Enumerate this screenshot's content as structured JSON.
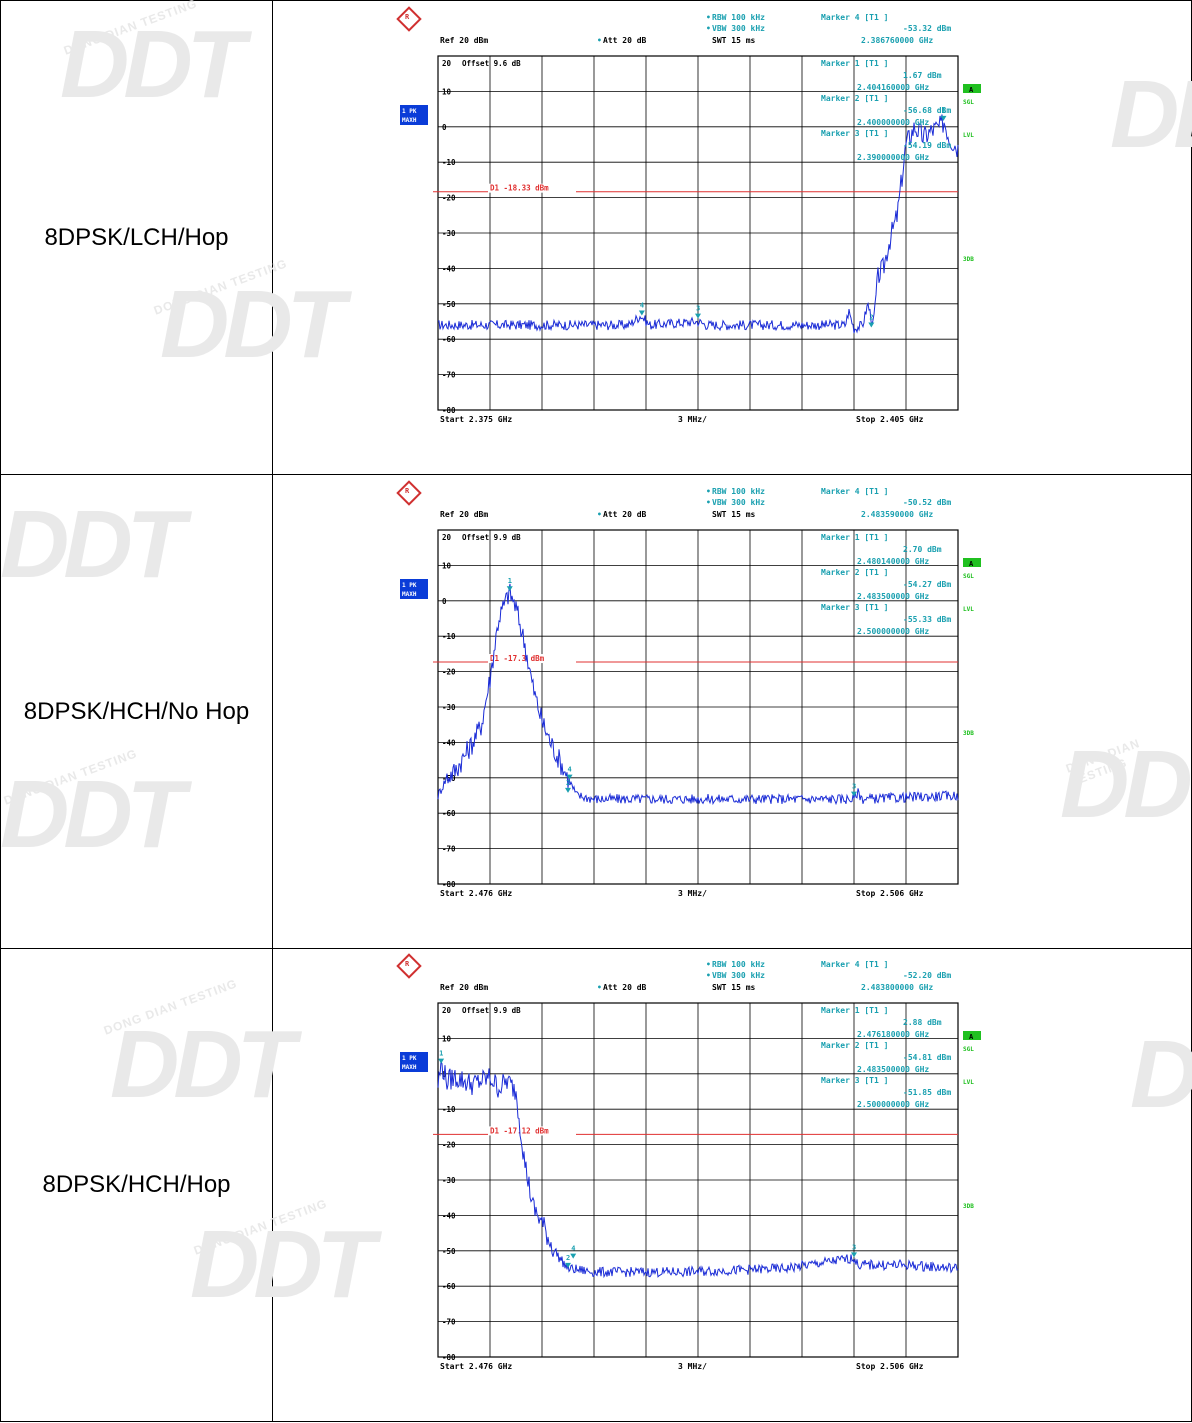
{
  "watermark": {
    "logo": "DDT",
    "text": "DONG DIAN TESTING"
  },
  "colors": {
    "trace": "#1a2bd6",
    "marker": "#1aa0b0",
    "display_line": "#e03030",
    "grid": "#000000",
    "side_badge": "#0a3cd8",
    "green_badge": "#20c020"
  },
  "rows": [
    {
      "label": "8DPSK/LCH/Hop",
      "header": {
        "rbw": "RBW 100 kHz",
        "vbw": "VBW 300 kHz",
        "swt": "SWT 15 ms",
        "ref": "Ref  20 dBm",
        "att": "Att  20 dB",
        "marker_title": "Marker 4 [T1 ]",
        "marker_level": "-53.32 dBm",
        "marker_freq": "2.386760000 GHz"
      },
      "offset": "Offset  9.6 dB",
      "left_badge_1": "1 PK",
      "left_badge_2": "MAXH",
      "right_labels": {
        "a": "A",
        "sgl": "SGL",
        "lvl": "LVL",
        "db3": "3DB"
      },
      "marker_box": [
        {
          "title": "Marker 1 [T1 ]",
          "level": "1.67 dBm",
          "freq": "2.404160000 GHz"
        },
        {
          "title": "Marker 2 [T1 ]",
          "level": "-56.68 dBm",
          "freq": "2.400000000 GHz"
        },
        {
          "title": "Marker 3 [T1 ]",
          "level": "-54.19 dBm",
          "freq": "2.390000000 GHz"
        }
      ],
      "display_line_label": "D1 -18.33 dBm",
      "footer": {
        "start": "Start  2.375 GHz",
        "span": "3 MHz/",
        "stop": "Stop  2.405 GHz"
      },
      "chart_data": {
        "type": "line",
        "x_range_ghz": [
          2.375,
          2.405
        ],
        "ylim": [
          -80,
          20
        ],
        "y_ticks": [
          20,
          10,
          0,
          -10,
          -20,
          -30,
          -40,
          -50,
          -60,
          -70,
          -80
        ],
        "y_tick_labels": [
          "20",
          "10",
          "0",
          "-10",
          "-20",
          "-30",
          "-40",
          "-50",
          "-60",
          "-70",
          "-80"
        ],
        "display_line_dbm": -18.33,
        "noise_floor_dbm": -56,
        "trace": [
          [
            2.375,
            -56
          ],
          [
            2.386,
            -56
          ],
          [
            2.3867,
            -53.3
          ],
          [
            2.3872,
            -56
          ],
          [
            2.39,
            -55
          ],
          [
            2.3905,
            -56
          ],
          [
            2.3985,
            -56
          ],
          [
            2.3987,
            -52
          ],
          [
            2.399,
            -57
          ],
          [
            2.3995,
            -56
          ],
          [
            2.3998,
            -50
          ],
          [
            2.4001,
            -56
          ],
          [
            2.4004,
            -42
          ],
          [
            2.4007,
            -40
          ],
          [
            2.401,
            -33
          ],
          [
            2.4015,
            -25
          ],
          [
            2.402,
            -5
          ],
          [
            2.4025,
            0
          ],
          [
            2.403,
            -3
          ],
          [
            2.4035,
            -1
          ],
          [
            2.404,
            0
          ],
          [
            2.4042,
            1.7
          ],
          [
            2.4045,
            -3
          ],
          [
            2.405,
            -6
          ]
        ],
        "markers": [
          {
            "id": "1",
            "freq_ghz": 2.40416,
            "level_dbm": 1.67
          },
          {
            "id": "2",
            "freq_ghz": 2.4,
            "level_dbm": -56.68
          },
          {
            "id": "3",
            "freq_ghz": 2.39,
            "level_dbm": -54.19
          },
          {
            "id": "4",
            "freq_ghz": 2.38676,
            "level_dbm": -53.32
          }
        ]
      }
    },
    {
      "label": "8DPSK/HCH/No Hop",
      "header": {
        "rbw": "RBW 100 kHz",
        "vbw": "VBW 300 kHz",
        "swt": "SWT 15 ms",
        "ref": "Ref  20 dBm",
        "att": "Att  20 dB",
        "marker_title": "Marker 4 [T1 ]",
        "marker_level": "-50.52 dBm",
        "marker_freq": "2.483590000 GHz"
      },
      "offset": "Offset  9.9 dB",
      "left_badge_1": "1 PK",
      "left_badge_2": "MAXH",
      "right_labels": {
        "a": "A",
        "sgl": "SGL",
        "lvl": "LVL",
        "db3": "3DB"
      },
      "marker_box": [
        {
          "title": "Marker 1 [T1 ]",
          "level": "2.70 dBm",
          "freq": "2.480140000 GHz"
        },
        {
          "title": "Marker 2 [T1 ]",
          "level": "-54.27 dBm",
          "freq": "2.483500000 GHz"
        },
        {
          "title": "Marker 3 [T1 ]",
          "level": "-55.33 dBm",
          "freq": "2.500000000 GHz"
        }
      ],
      "display_line_label": "D1 -17.3 dBm",
      "footer": {
        "start": "Start  2.476 GHz",
        "span": "3 MHz/",
        "stop": "Stop  2.506 GHz"
      },
      "chart_data": {
        "type": "line",
        "x_range_ghz": [
          2.476,
          2.506
        ],
        "ylim": [
          -80,
          20
        ],
        "y_ticks": [
          20,
          10,
          0,
          -10,
          -20,
          -30,
          -40,
          -50,
          -60,
          -70,
          -80
        ],
        "y_tick_labels": [
          "20",
          "10",
          "0",
          "-10",
          "-20",
          "-30",
          "-40",
          "-50",
          "-60",
          "-70",
          "-80"
        ],
        "display_line_dbm": -17.3,
        "noise_floor_dbm": -56,
        "trace": [
          [
            2.476,
            -55
          ],
          [
            2.4765,
            -50
          ],
          [
            2.477,
            -48
          ],
          [
            2.4775,
            -44
          ],
          [
            2.478,
            -40
          ],
          [
            2.4785,
            -35
          ],
          [
            2.479,
            -22
          ],
          [
            2.4795,
            -5
          ],
          [
            2.48,
            1
          ],
          [
            2.4801,
            2.7
          ],
          [
            2.4805,
            -2
          ],
          [
            2.481,
            -12
          ],
          [
            2.4815,
            -25
          ],
          [
            2.482,
            -34
          ],
          [
            2.4825,
            -40
          ],
          [
            2.483,
            -45
          ],
          [
            2.4835,
            -50
          ],
          [
            2.484,
            -55
          ],
          [
            2.485,
            -56
          ],
          [
            2.5,
            -56
          ],
          [
            2.5002,
            -54
          ],
          [
            2.5005,
            -56
          ],
          [
            2.506,
            -55
          ]
        ],
        "markers": [
          {
            "id": "1",
            "freq_ghz": 2.48014,
            "level_dbm": 2.7
          },
          {
            "id": "2",
            "freq_ghz": 2.4835,
            "level_dbm": -54.27
          },
          {
            "id": "3",
            "freq_ghz": 2.5,
            "level_dbm": -55.33
          },
          {
            "id": "4",
            "freq_ghz": 2.48359,
            "level_dbm": -50.52
          }
        ]
      }
    },
    {
      "label": "8DPSK/HCH/Hop",
      "header": {
        "rbw": "RBW 100 kHz",
        "vbw": "VBW 300 kHz",
        "swt": "SWT 15 ms",
        "ref": "Ref  20 dBm",
        "att": "Att  20 dB",
        "marker_title": "Marker 4 [T1 ]",
        "marker_level": "-52.20 dBm",
        "marker_freq": "2.483800000 GHz"
      },
      "offset": "Offset  9.9 dB",
      "left_badge_1": "1 PK",
      "left_badge_2": "MAXH",
      "right_labels": {
        "a": "A",
        "sgl": "SGL",
        "lvl": "LVL",
        "db3": "3DB"
      },
      "marker_box": [
        {
          "title": "Marker 1 [T1 ]",
          "level": "2.88 dBm",
          "freq": "2.476180000 GHz"
        },
        {
          "title": "Marker 2 [T1 ]",
          "level": "-54.81 dBm",
          "freq": "2.483500000 GHz"
        },
        {
          "title": "Marker 3 [T1 ]",
          "level": "-51.85 dBm",
          "freq": "2.500000000 GHz"
        }
      ],
      "display_line_label": "D1 -17.12 dBm",
      "footer": {
        "start": "Start  2.476 GHz",
        "span": "3 MHz/",
        "stop": "Stop  2.506 GHz"
      },
      "chart_data": {
        "type": "line",
        "x_range_ghz": [
          2.476,
          2.506
        ],
        "ylim": [
          -80,
          20
        ],
        "y_ticks": [
          20,
          10,
          0,
          -10,
          -20,
          -30,
          -40,
          -50,
          -60,
          -70,
          -80
        ],
        "y_tick_labels": [
          "20",
          "10",
          "0",
          "-10",
          "-20",
          "-30",
          "-40",
          "-50",
          "-60",
          "-70",
          "-80"
        ],
        "display_line_dbm": -17.12,
        "noise_floor_dbm": -56,
        "trace": [
          [
            2.476,
            -3
          ],
          [
            2.4762,
            2.9
          ],
          [
            2.4765,
            -2
          ],
          [
            2.477,
            -1
          ],
          [
            2.478,
            -3
          ],
          [
            2.479,
            -1
          ],
          [
            2.4795,
            -4
          ],
          [
            2.48,
            -2
          ],
          [
            2.4805,
            -5
          ],
          [
            2.481,
            -25
          ],
          [
            2.4815,
            -38
          ],
          [
            2.482,
            -42
          ],
          [
            2.4825,
            -48
          ],
          [
            2.483,
            -52
          ],
          [
            2.4835,
            -55
          ],
          [
            2.485,
            -56
          ],
          [
            2.49,
            -56
          ],
          [
            2.496,
            -55
          ],
          [
            2.5,
            -52
          ],
          [
            2.5002,
            -54
          ],
          [
            2.503,
            -54
          ],
          [
            2.506,
            -55
          ]
        ],
        "markers": [
          {
            "id": "1",
            "freq_ghz": 2.47618,
            "level_dbm": 2.88
          },
          {
            "id": "2",
            "freq_ghz": 2.4835,
            "level_dbm": -54.81
          },
          {
            "id": "3",
            "freq_ghz": 2.5,
            "level_dbm": -51.85
          },
          {
            "id": "4",
            "freq_ghz": 2.4838,
            "level_dbm": -52.2
          }
        ]
      }
    }
  ]
}
